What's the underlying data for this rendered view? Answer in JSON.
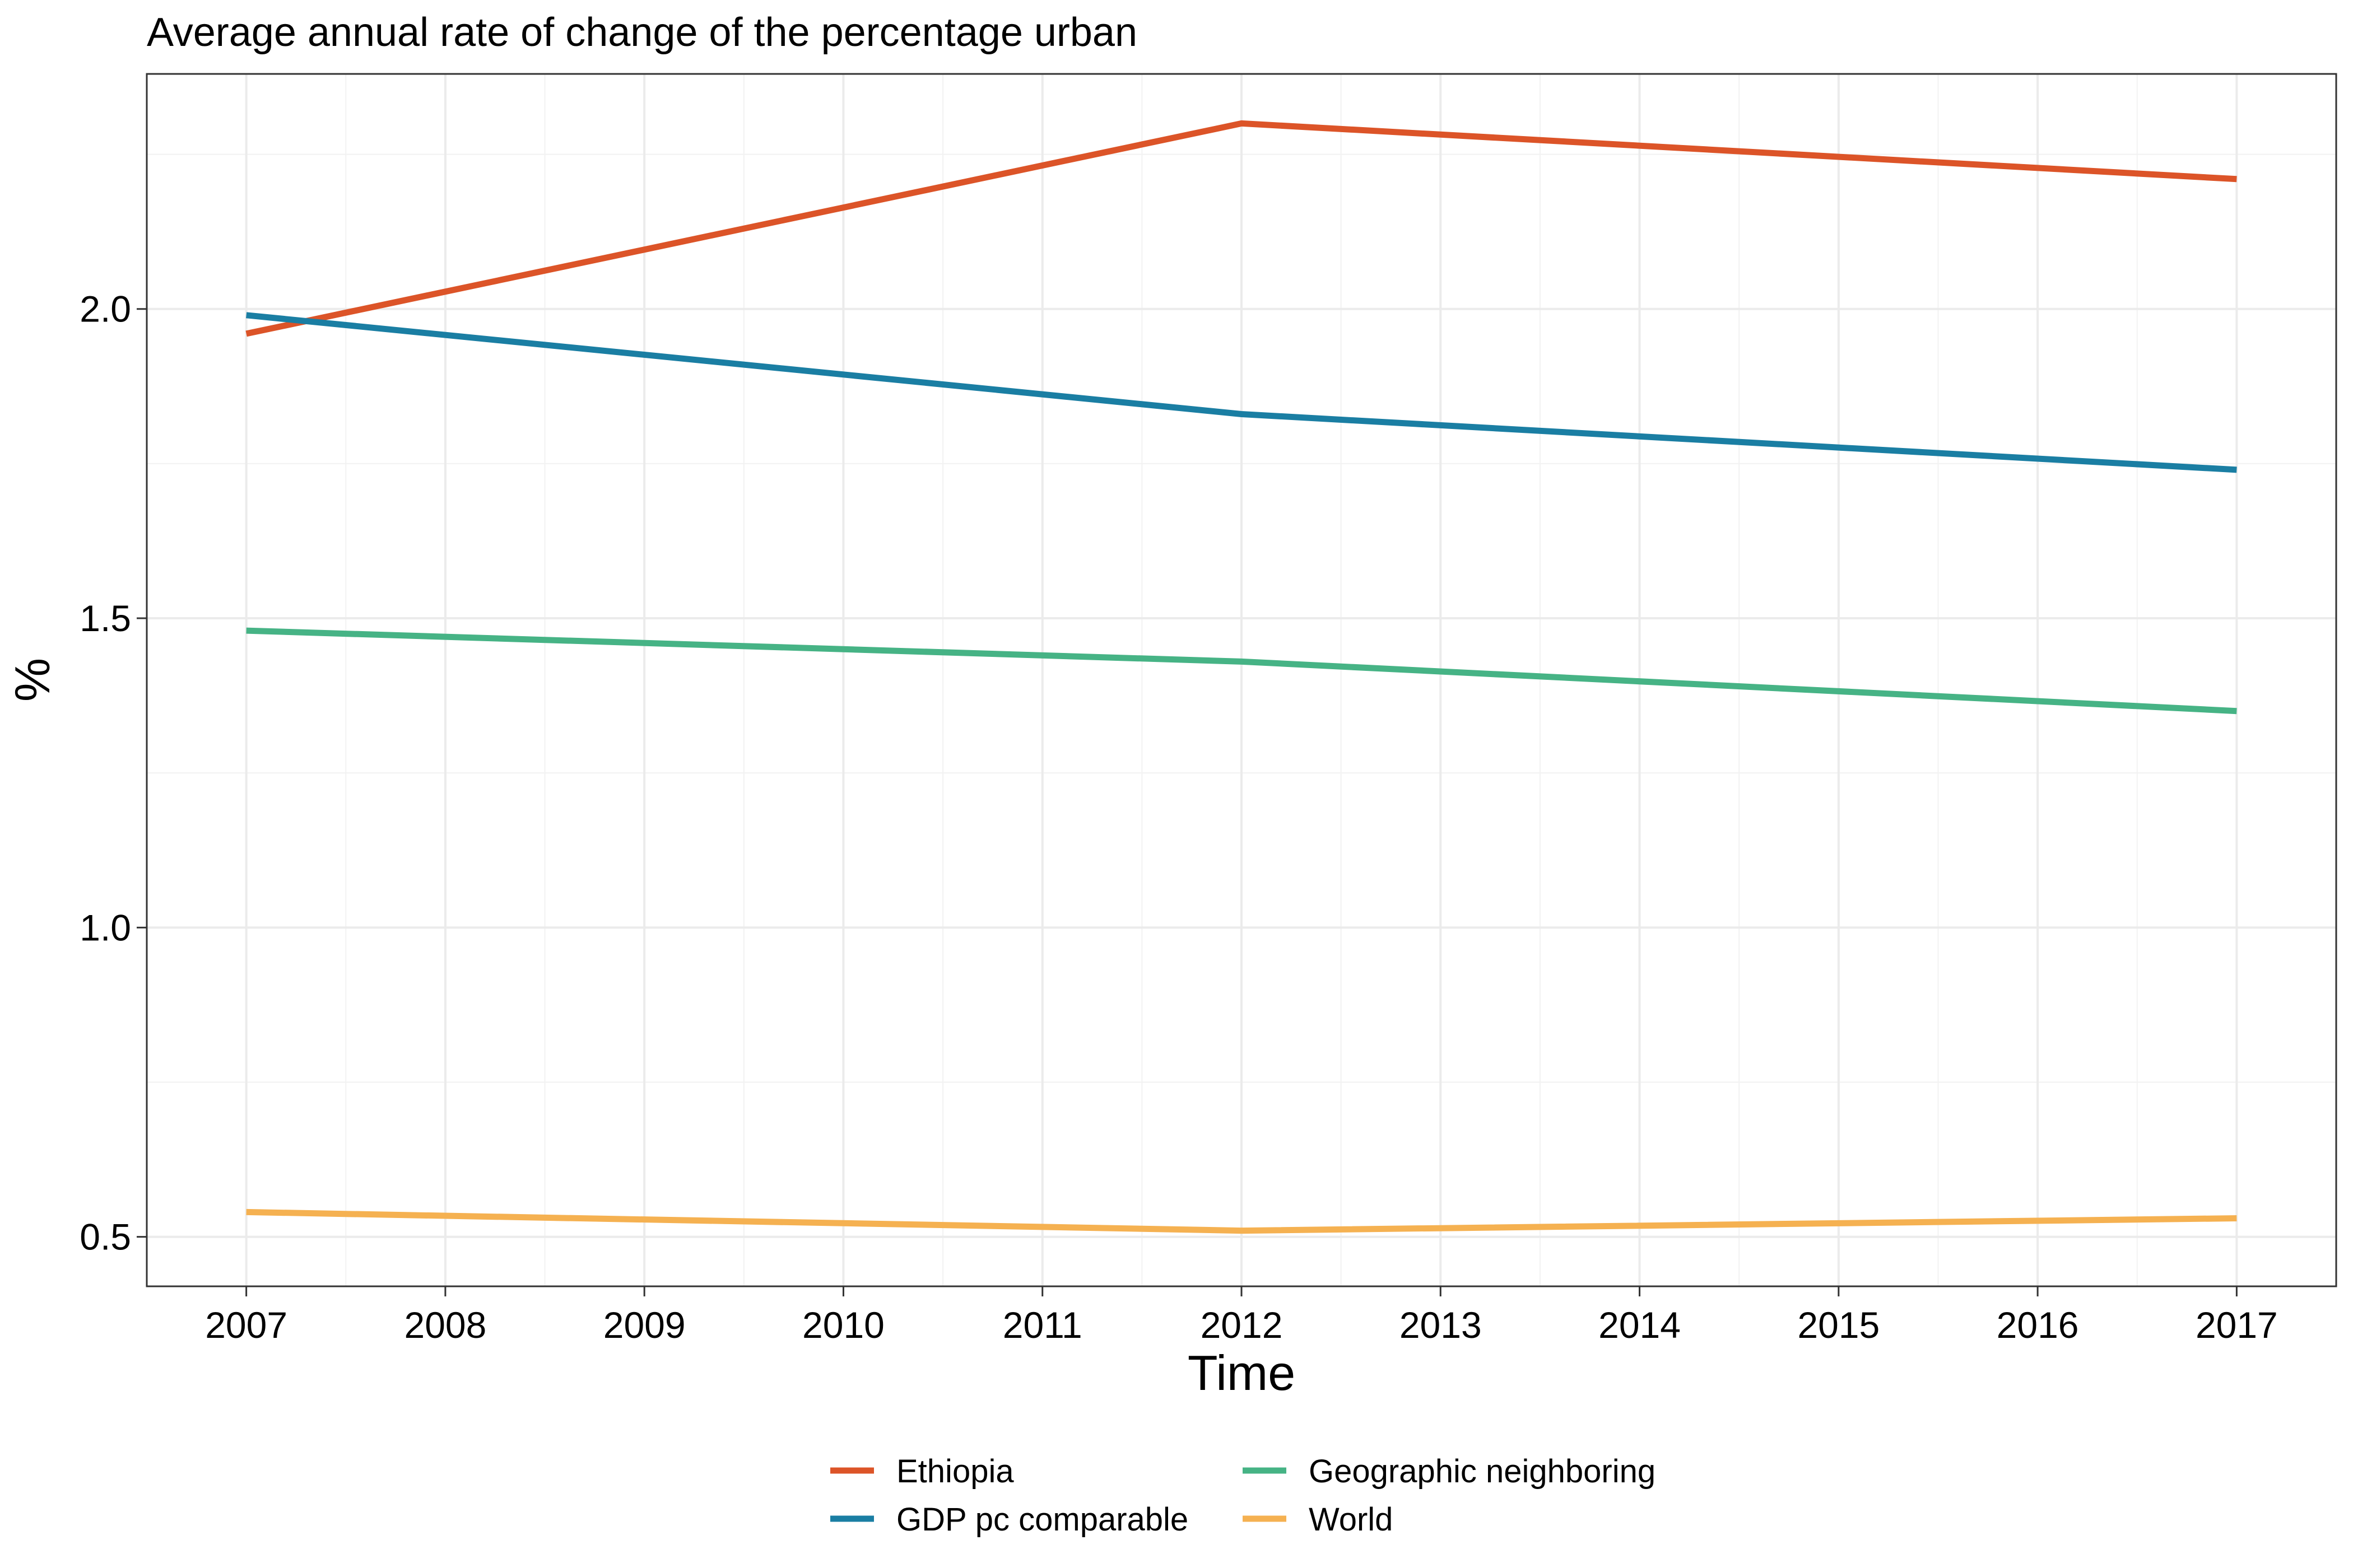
{
  "chart_data": {
    "type": "line",
    "title": "Average annual rate of change of the percentage urban",
    "xlabel": "Time",
    "ylabel": "%",
    "x": [
      2007,
      2012,
      2017
    ],
    "x_ticks": [
      "2007",
      "2008",
      "2009",
      "2010",
      "2011",
      "2012",
      "2013",
      "2014",
      "2015",
      "2016",
      "2017"
    ],
    "xlim": [
      2006.5,
      2017.5
    ],
    "y_ticks": [
      "0.5",
      "1.0",
      "1.5",
      "2.0"
    ],
    "ylim": [
      0.42,
      2.38
    ],
    "grid": true,
    "legend_position": "bottom",
    "series": [
      {
        "name": "Ethiopia",
        "color": "#dc5428",
        "values": [
          1.96,
          2.3,
          2.21
        ]
      },
      {
        "name": "GDP pc comparable",
        "color": "#1a7ea3",
        "values": [
          1.99,
          1.83,
          1.74
        ]
      },
      {
        "name": "Geographic neighboring",
        "color": "#46b385",
        "values": [
          1.48,
          1.43,
          1.35
        ]
      },
      {
        "name": "World",
        "color": "#f5b151",
        "values": [
          0.54,
          0.51,
          0.53
        ]
      }
    ]
  }
}
